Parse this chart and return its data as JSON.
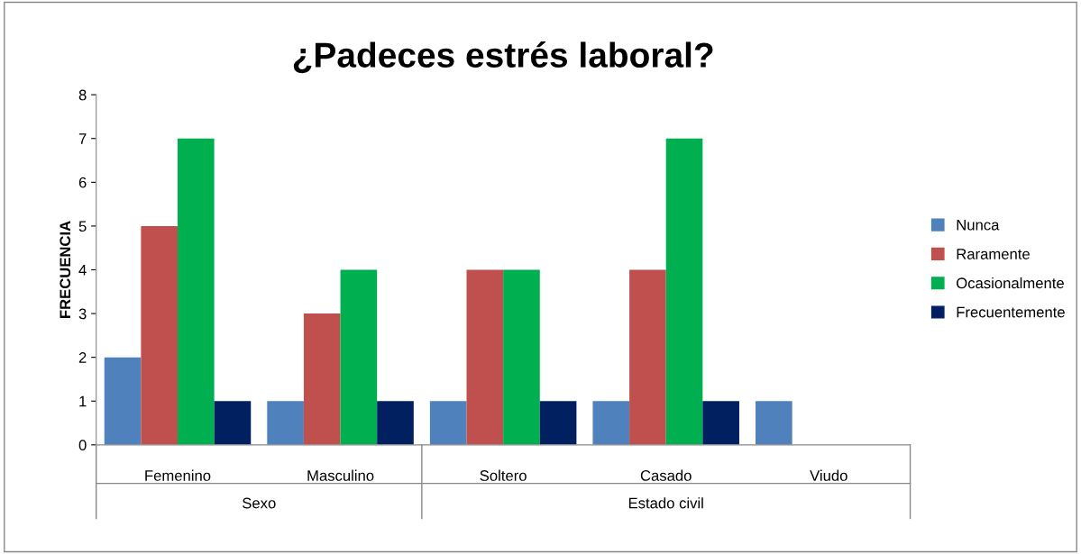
{
  "chart_data": {
    "type": "bar",
    "title": "¿Padeces estrés laboral?",
    "ylabel": "FRECUENCIA",
    "categories": [
      "Femenino",
      "Masculino",
      "Soltero",
      "Casado",
      "Viudo"
    ],
    "series": [
      {
        "name": "Nunca",
        "color": "#4f81bd",
        "values": [
          2,
          1,
          1,
          1,
          1
        ]
      },
      {
        "name": "Raramente",
        "color": "#c0504d",
        "values": [
          5,
          3,
          4,
          4,
          null
        ]
      },
      {
        "name": "Ocasionalmente",
        "color": "#00b050",
        "values": [
          7,
          4,
          4,
          7,
          null
        ]
      },
      {
        "name": "Frecuentemente",
        "color": "#002060",
        "values": [
          1,
          1,
          1,
          1,
          null
        ]
      }
    ],
    "annotations": [
      "Sexo",
      "Estado civil"
    ],
    "ylim": [
      0,
      8
    ],
    "yticks": [
      0,
      1,
      2,
      3,
      4,
      5,
      6,
      7,
      8
    ],
    "grid": false,
    "legend": "right"
  }
}
